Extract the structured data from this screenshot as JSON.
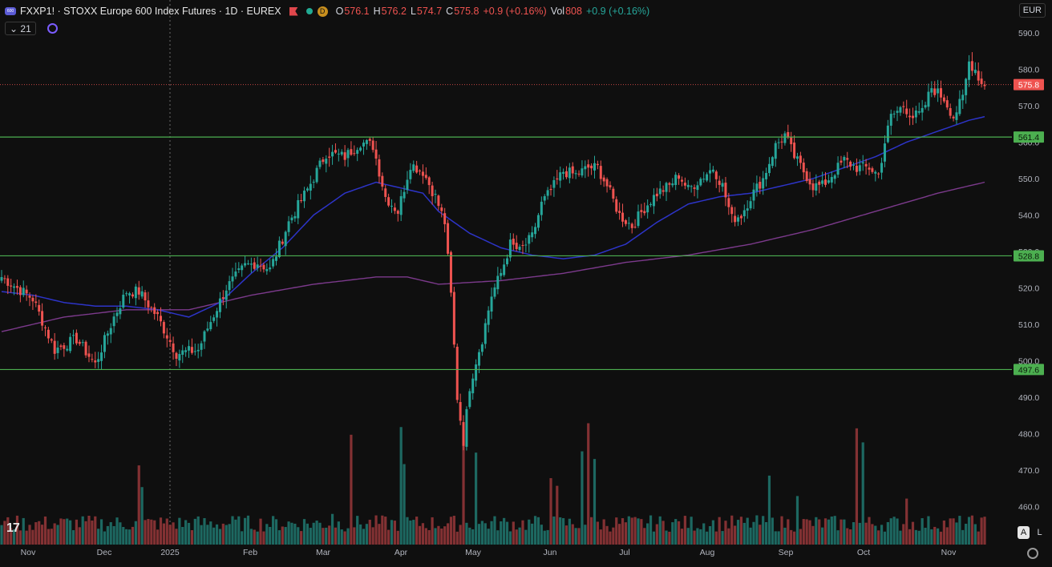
{
  "header": {
    "symbol": "FXXP1!",
    "description": "STOXX Europe 600 Index Futures",
    "interval": "1D",
    "exchange": "EUREX",
    "title": "FXXP1! · STOXX Europe 600 Index Futures · 1D · EUREX",
    "d_badge": "D",
    "o_label": "O",
    "o_value": "576.1",
    "h_label": "H",
    "h_value": "576.2",
    "l_label": "L",
    "l_value": "574.7",
    "c_label": "C",
    "c_value": "575.8",
    "change": "+0.9 (+0.16%)",
    "vol_label": "Vol",
    "vol_value": "808",
    "vol_change": "+0.9 (+0.16%)",
    "indicator_label": "21",
    "currency": "EUR",
    "buttons": {
      "auto": "A",
      "log": "L"
    }
  },
  "colors": {
    "up": "#26a69a",
    "down": "#ef5350",
    "ma_fast": "#2d34c8",
    "ma_slow": "#7c3a8c",
    "levels": "#4caf50",
    "price_line": "#ef5350",
    "background": "#0f0f0f"
  },
  "chart_data": {
    "type": "candlestick",
    "yaxis": {
      "ticks": [
        "590.0",
        "580.0",
        "570.0",
        "560.0",
        "550.0",
        "540.0",
        "530.0",
        "520.0",
        "510.0",
        "500.0",
        "490.0",
        "480.0",
        "470.0",
        "460.0"
      ],
      "range": [
        452,
        593
      ]
    },
    "xaxis": {
      "ticks": [
        "Nov",
        "Dec",
        "2025",
        "Feb",
        "Mar",
        "Apr",
        "May",
        "Jun",
        "Jul",
        "Aug",
        "Sep",
        "Oct",
        "Nov"
      ]
    },
    "last_price": {
      "value": 575.8,
      "label": "575.8"
    },
    "levels": [
      {
        "value": 561.4,
        "label": "561.4"
      },
      {
        "value": 528.8,
        "label": "528.8"
      },
      {
        "value": 497.6,
        "label": "497.6"
      }
    ],
    "close_keypoints": [
      [
        0,
        523
      ],
      [
        10,
        517
      ],
      [
        17,
        503
      ],
      [
        24,
        506
      ],
      [
        30,
        499
      ],
      [
        36,
        512
      ],
      [
        40,
        519
      ],
      [
        44,
        519
      ],
      [
        50,
        512
      ],
      [
        56,
        502
      ],
      [
        63,
        503
      ],
      [
        66,
        509
      ],
      [
        72,
        520
      ],
      [
        78,
        526
      ],
      [
        82,
        527
      ],
      [
        86,
        525
      ],
      [
        92,
        538
      ],
      [
        98,
        547
      ],
      [
        104,
        557
      ],
      [
        110,
        556
      ],
      [
        115,
        560
      ],
      [
        119,
        559
      ],
      [
        123,
        545
      ],
      [
        127,
        541
      ],
      [
        131,
        554
      ],
      [
        135,
        552
      ],
      [
        139,
        545
      ],
      [
        142,
        538
      ],
      [
        144,
        518
      ],
      [
        146,
        490
      ],
      [
        148,
        478
      ],
      [
        150,
        493
      ],
      [
        152,
        500
      ],
      [
        154,
        506
      ],
      [
        157,
        518
      ],
      [
        160,
        524
      ],
      [
        163,
        532
      ],
      [
        166,
        530
      ],
      [
        170,
        534
      ],
      [
        173,
        543
      ],
      [
        177,
        548
      ],
      [
        180,
        552
      ],
      [
        184,
        551
      ],
      [
        188,
        553
      ],
      [
        191,
        553
      ],
      [
        194,
        548
      ],
      [
        198,
        540
      ],
      [
        202,
        537
      ],
      [
        206,
        542
      ],
      [
        210,
        546
      ],
      [
        214,
        548
      ],
      [
        217,
        551
      ],
      [
        220,
        547
      ],
      [
        224,
        550
      ],
      [
        228,
        553
      ],
      [
        231,
        548
      ],
      [
        234,
        539
      ],
      [
        237,
        540
      ],
      [
        240,
        545
      ],
      [
        244,
        550
      ],
      [
        248,
        559
      ],
      [
        251,
        562
      ],
      [
        254,
        556
      ],
      [
        257,
        552
      ],
      [
        260,
        548
      ],
      [
        263,
        548
      ],
      [
        266,
        551
      ],
      [
        270,
        555
      ],
      [
        274,
        553
      ],
      [
        278,
        553
      ],
      [
        281,
        551
      ],
      [
        283,
        560
      ],
      [
        285,
        567
      ],
      [
        289,
        570
      ],
      [
        292,
        567
      ],
      [
        295,
        568
      ],
      [
        298,
        575
      ],
      [
        302,
        572
      ],
      [
        305,
        567
      ],
      [
        308,
        572
      ],
      [
        310,
        582
      ],
      [
        312,
        580
      ],
      [
        314,
        576
      ],
      [
        315,
        576
      ]
    ],
    "ma_fast_keypoints": [
      [
        0,
        519
      ],
      [
        10,
        518
      ],
      [
        20,
        516
      ],
      [
        30,
        515
      ],
      [
        40,
        515
      ],
      [
        50,
        514
      ],
      [
        60,
        512
      ],
      [
        70,
        516
      ],
      [
        80,
        524
      ],
      [
        90,
        531
      ],
      [
        100,
        540
      ],
      [
        110,
        546
      ],
      [
        120,
        549
      ],
      [
        130,
        547
      ],
      [
        135,
        546
      ],
      [
        140,
        541
      ],
      [
        150,
        535
      ],
      [
        160,
        531
      ],
      [
        170,
        529
      ],
      [
        180,
        528
      ],
      [
        190,
        529
      ],
      [
        200,
        532
      ],
      [
        210,
        538
      ],
      [
        220,
        543
      ],
      [
        230,
        545
      ],
      [
        240,
        546
      ],
      [
        250,
        548
      ],
      [
        260,
        550
      ],
      [
        270,
        553
      ],
      [
        280,
        556
      ],
      [
        290,
        560
      ],
      [
        300,
        563
      ],
      [
        310,
        566
      ],
      [
        315,
        567
      ]
    ],
    "ma_slow_keypoints": [
      [
        0,
        508
      ],
      [
        20,
        512
      ],
      [
        40,
        514
      ],
      [
        60,
        514
      ],
      [
        80,
        518
      ],
      [
        100,
        521
      ],
      [
        120,
        523
      ],
      [
        130,
        523
      ],
      [
        140,
        521
      ],
      [
        160,
        522
      ],
      [
        180,
        524
      ],
      [
        200,
        527
      ],
      [
        220,
        529
      ],
      [
        240,
        532
      ],
      [
        260,
        536
      ],
      [
        280,
        541
      ],
      [
        300,
        546
      ],
      [
        315,
        549
      ]
    ],
    "volume_scale_max": 290,
    "volume_spikes": [
      [
        44,
        0.62
      ],
      [
        45,
        0.45
      ],
      [
        106,
        0.24
      ],
      [
        112,
        0.86
      ],
      [
        128,
        0.92
      ],
      [
        129,
        0.63
      ],
      [
        148,
        0.9
      ],
      [
        152,
        0.72
      ],
      [
        176,
        0.52
      ],
      [
        178,
        0.46
      ],
      [
        186,
        0.73
      ],
      [
        188,
        0.95
      ],
      [
        190,
        0.67
      ],
      [
        246,
        0.54
      ],
      [
        255,
        0.38
      ],
      [
        274,
        0.91
      ],
      [
        276,
        0.8
      ],
      [
        290,
        0.36
      ]
    ]
  }
}
